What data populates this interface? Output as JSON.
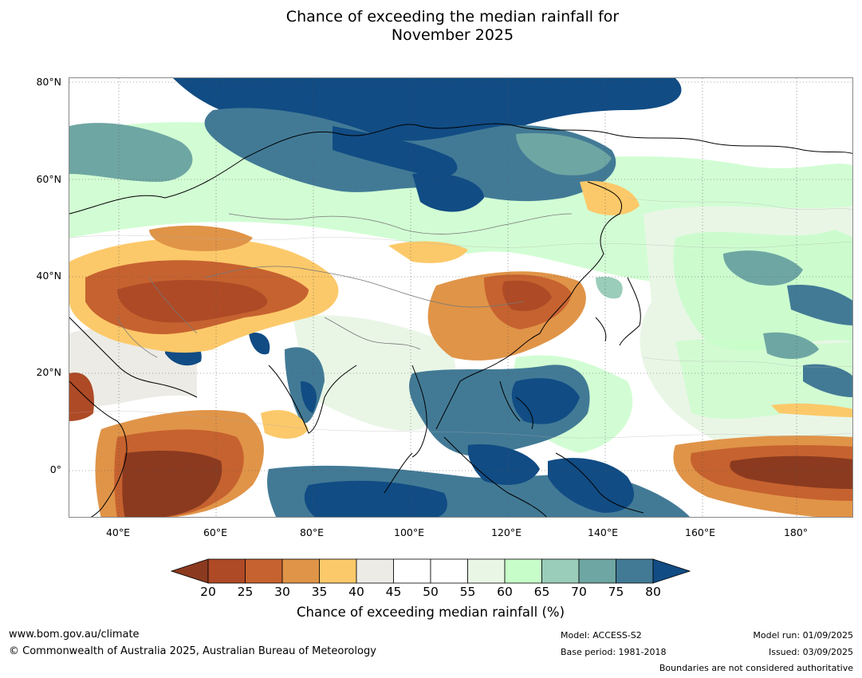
{
  "title": {
    "line1": "Chance of exceeding the median rainfall for",
    "line2": "November 2025"
  },
  "map": {
    "latitude_labels": [
      "80°N",
      "60°N",
      "40°N",
      "20°N",
      "0°"
    ],
    "longitude_labels": [
      "40°E",
      "60°E",
      "80°E",
      "100°E",
      "120°E",
      "140°E",
      "160°E",
      "180°"
    ],
    "extent": {
      "lon_min": 30,
      "lon_max": 191,
      "lat_min": -10,
      "lat_max": 80
    }
  },
  "colorbar": {
    "tick_labels": [
      "20",
      "25",
      "30",
      "35",
      "40",
      "45",
      "50",
      "55",
      "60",
      "65",
      "70",
      "75",
      "80"
    ],
    "colors": [
      "#8b3a1f",
      "#ae4a26",
      "#c6622f",
      "#e09448",
      "#fcc96a",
      "#ecebe5",
      "#ffffff",
      "#ffffff",
      "#e9f6e6",
      "#c7fdc9",
      "#9acdba",
      "#6ea6a3",
      "#427a96",
      "#114c84"
    ],
    "title": "Chance of exceeding median rainfall (%)"
  },
  "footer": {
    "website": "www.bom.gov.au/climate",
    "copyright": "© Commonwealth of Australia 2025, Australian Bureau of Meteorology",
    "model": "Model: ACCESS-S2",
    "base_period": "Base period: 1981-2018",
    "model_run": "Model run: 01/09/2025",
    "issued": "Issued: 03/09/2025",
    "disclaimer": "Boundaries are not considered authoritative"
  }
}
